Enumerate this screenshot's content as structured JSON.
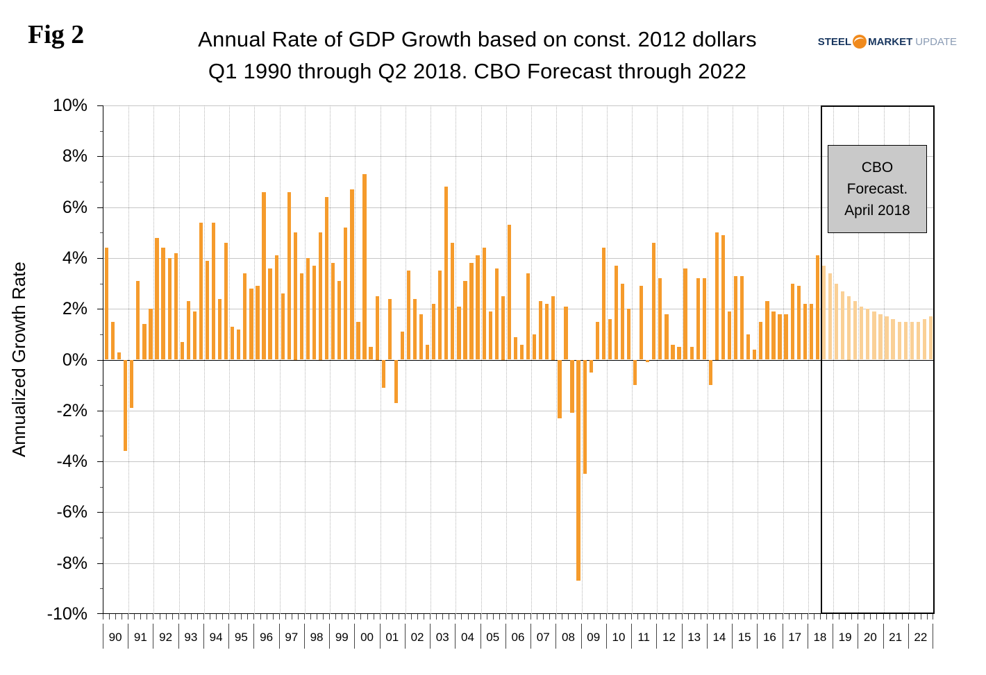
{
  "header": {
    "fig_label": "Fig 2",
    "title_line1": "Annual Rate of GDP Growth based on const. 2012 dollars",
    "title_line2": "Q1 1990 through Q2 2018. CBO Forecast through 2022",
    "logo": {
      "steel": "STEEL",
      "market": "MARKET",
      "update": "UPDATE",
      "ball_color": "#F08A1D"
    }
  },
  "chart_data": {
    "type": "bar",
    "title": "Annual Rate of GDP Growth based on const. 2012 dollars Q1 1990 through Q2 2018. CBO Forecast through 2022",
    "xlabel": "",
    "ylabel": "Annualized Growth Rate",
    "ylim": [
      -10,
      10
    ],
    "ytick_step": 2,
    "y_tick_format": "percent",
    "grid": true,
    "legend": "none",
    "colors": {
      "actual": "#F59B2C",
      "forecast": "#FAD096",
      "gridline": "#C6C6C6",
      "year_gridline": "#B5B5B5",
      "zero_line": "#000000"
    },
    "x_unit": "quarter",
    "years": [
      "90",
      "91",
      "92",
      "93",
      "94",
      "95",
      "96",
      "97",
      "98",
      "99",
      "00",
      "01",
      "02",
      "03",
      "04",
      "05",
      "06",
      "07",
      "08",
      "09",
      "10",
      "11",
      "12",
      "13",
      "14",
      "15",
      "16",
      "17",
      "18",
      "19",
      "20",
      "21",
      "22"
    ],
    "values": [
      4.4,
      1.5,
      0.3,
      -3.6,
      -1.9,
      3.1,
      1.4,
      2.0,
      4.8,
      4.4,
      4.0,
      4.2,
      0.7,
      2.3,
      1.9,
      5.4,
      3.9,
      5.4,
      2.4,
      4.6,
      1.3,
      1.2,
      3.4,
      2.8,
      2.9,
      6.6,
      3.6,
      4.1,
      2.6,
      6.6,
      5.0,
      3.4,
      4.0,
      3.7,
      5.0,
      6.4,
      3.8,
      3.1,
      5.2,
      6.7,
      1.5,
      7.3,
      0.5,
      2.5,
      -1.1,
      2.4,
      -1.7,
      1.1,
      3.5,
      2.4,
      1.8,
      0.6,
      2.2,
      3.5,
      6.8,
      4.6,
      2.1,
      3.1,
      3.8,
      4.1,
      4.4,
      1.9,
      3.6,
      2.5,
      5.3,
      0.9,
      0.6,
      3.4,
      1.0,
      2.3,
      2.2,
      2.5,
      -2.3,
      2.1,
      -2.1,
      -8.7,
      -4.5,
      -0.5,
      1.5,
      4.4,
      1.6,
      3.7,
      3.0,
      2.0,
      -1.0,
      2.9,
      -0.1,
      4.6,
      3.2,
      1.8,
      0.6,
      0.5,
      3.6,
      0.5,
      3.2,
      3.2,
      -1.0,
      5.0,
      4.9,
      1.9,
      3.3,
      3.3,
      1.0,
      0.4,
      1.5,
      2.3,
      1.9,
      1.8,
      1.8,
      3.0,
      2.9,
      2.2,
      2.2,
      4.1,
      3.7,
      3.4,
      3.0,
      2.7,
      2.5,
      2.3,
      2.1,
      2.0,
      1.9,
      1.8,
      1.7,
      1.6,
      1.5,
      1.5,
      1.5,
      1.5,
      1.6,
      1.7
    ],
    "forecast_start_index": 114,
    "annotation": {
      "text": "CBO Forecast. April 2018",
      "lines": [
        "CBO",
        "Forecast.",
        "April 2018"
      ]
    }
  }
}
